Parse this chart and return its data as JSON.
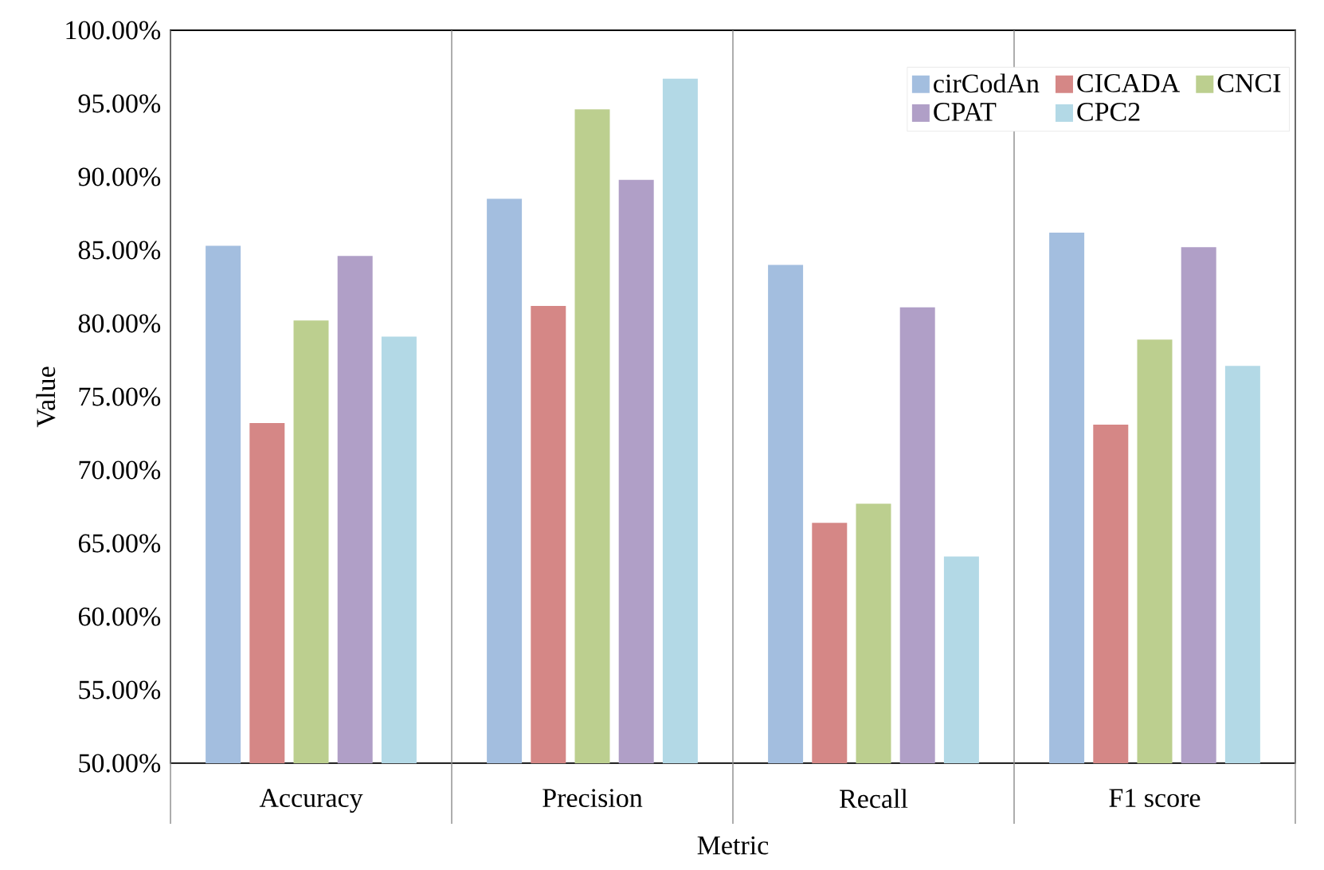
{
  "chart_data": {
    "type": "bar",
    "xlabel": "Metric",
    "ylabel": "Value",
    "categories": [
      "Accuracy",
      "Precision",
      "Recall",
      "F1 score"
    ],
    "series": [
      {
        "name": "cirCodAn",
        "color": "#a3bedf",
        "values": [
          85.3,
          88.5,
          84.0,
          86.2
        ]
      },
      {
        "name": "CICADA",
        "color": "#d58786",
        "values": [
          73.2,
          81.2,
          66.4,
          73.1
        ]
      },
      {
        "name": "CNCI",
        "color": "#bccf8f",
        "values": [
          80.2,
          94.6,
          67.7,
          78.9
        ]
      },
      {
        "name": "CPAT",
        "color": "#b09fc7",
        "values": [
          84.6,
          89.8,
          81.1,
          85.2
        ]
      },
      {
        "name": "CPC2",
        "color": "#b3d9e6",
        "values": [
          79.1,
          96.7,
          64.1,
          77.1
        ]
      }
    ],
    "ylim": [
      50,
      100
    ],
    "yticks": [
      {
        "value": 50,
        "label": "50.00%"
      },
      {
        "value": 55,
        "label": "55.00%"
      },
      {
        "value": 60,
        "label": "60.00%"
      },
      {
        "value": 65,
        "label": "65.00%"
      },
      {
        "value": 70,
        "label": "70.00%"
      },
      {
        "value": 75,
        "label": "75.00%"
      },
      {
        "value": 80,
        "label": "80.00%"
      },
      {
        "value": 85,
        "label": "85.00%"
      },
      {
        "value": 90,
        "label": "90.00%"
      },
      {
        "value": 95,
        "label": "95.00%"
      },
      {
        "value": 100,
        "label": "100.00%"
      }
    ],
    "grid": "x",
    "legend": "top right"
  }
}
